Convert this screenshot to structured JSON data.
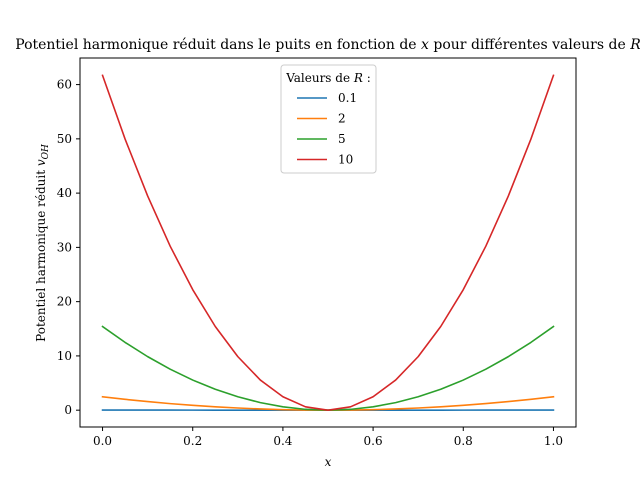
{
  "chart_data": {
    "type": "line",
    "title": "Potentiel harmonique réduit dans le puits en fonction de x pour différentes valeurs de R",
    "title_parts": {
      "prefix": "Potentiel harmonique réduit dans le puits en fonction de ",
      "x_symbol": "x",
      "middle": " pour différentes valeurs de ",
      "r_symbol": "R"
    },
    "xlabel": "x",
    "ylabel": "Potentiel harmonique réduit v_OH",
    "ylabel_parts": {
      "text": "Potentiel harmonique réduit ",
      "symbol": "v",
      "subscript": "OH"
    },
    "xlim": [
      -0.05,
      1.05
    ],
    "ylim": [
      -3.1,
      64.9
    ],
    "x_ticks": [
      0.0,
      0.2,
      0.4,
      0.6,
      0.8,
      1.0
    ],
    "x_tick_labels": [
      "0.0",
      "0.2",
      "0.4",
      "0.6",
      "0.8",
      "1.0"
    ],
    "y_ticks": [
      0,
      10,
      20,
      30,
      40,
      50,
      60
    ],
    "y_tick_labels": [
      "0",
      "10",
      "20",
      "30",
      "40",
      "50",
      "60"
    ],
    "grid": false,
    "legend": {
      "title_text": "Valeurs de ",
      "title_symbol": "R",
      "title_suffix": " :",
      "placement": "upper center"
    },
    "x": [
      0.0,
      0.05,
      0.1,
      0.15,
      0.2,
      0.25,
      0.3,
      0.35,
      0.4,
      0.45,
      0.5,
      0.55,
      0.6,
      0.65,
      0.7,
      0.75,
      0.8,
      0.85,
      0.9,
      0.95,
      1.0
    ],
    "series": [
      {
        "name": "0.1",
        "color": "#1f77b4",
        "values": [
          0.025,
          0.02,
          0.016,
          0.012,
          0.009,
          0.006,
          0.004,
          0.002,
          0.001,
          0.0,
          0.0,
          0.0,
          0.001,
          0.002,
          0.004,
          0.006,
          0.009,
          0.012,
          0.016,
          0.02,
          0.025
        ]
      },
      {
        "name": "2",
        "color": "#ff7f0e",
        "values": [
          2.47,
          2.0,
          1.58,
          1.21,
          0.89,
          0.62,
          0.4,
          0.22,
          0.1,
          0.02,
          0.0,
          0.02,
          0.1,
          0.22,
          0.4,
          0.62,
          0.89,
          1.21,
          1.58,
          2.0,
          2.47
        ]
      },
      {
        "name": "5",
        "color": "#2ca02c",
        "values": [
          15.42,
          12.49,
          9.87,
          7.55,
          5.55,
          3.85,
          2.47,
          1.39,
          0.62,
          0.15,
          0.0,
          0.15,
          0.62,
          1.39,
          2.47,
          3.85,
          5.55,
          7.55,
          9.87,
          12.49,
          15.42
        ]
      },
      {
        "name": "10",
        "color": "#d62728",
        "values": [
          61.7,
          49.96,
          39.48,
          30.22,
          22.21,
          15.42,
          9.87,
          5.55,
          2.47,
          0.62,
          0.0,
          0.62,
          2.47,
          5.55,
          9.87,
          15.42,
          22.21,
          30.22,
          39.48,
          49.96,
          61.7
        ]
      }
    ]
  }
}
